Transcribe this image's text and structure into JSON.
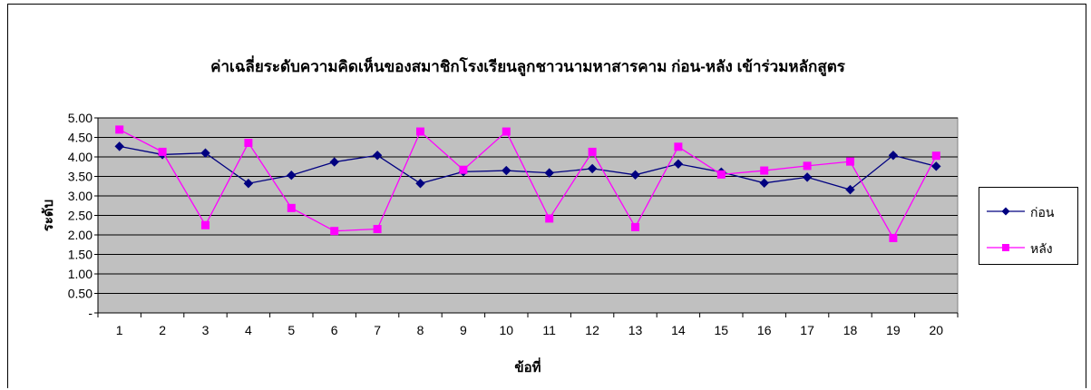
{
  "chart_data": {
    "type": "line",
    "title": "ค่าเฉลี่ยระดับความคิดเห็นของสมาชิกโรงเรียนลูกชาวนามหาสารคาม ก่อน-หลัง เข้าร่วมหลักสูตร",
    "xlabel": "ข้อที่",
    "ylabel": "ระดับ",
    "categories": [
      "1",
      "2",
      "3",
      "4",
      "5",
      "6",
      "7",
      "8",
      "9",
      "10",
      "11",
      "12",
      "13",
      "14",
      "15",
      "16",
      "17",
      "18",
      "19",
      "20"
    ],
    "y_ticks": [
      "-",
      "0.50",
      "1.00",
      "1.50",
      "2.00",
      "2.50",
      "3.00",
      "3.50",
      "4.00",
      "4.50",
      "5.00"
    ],
    "ylim": [
      0,
      5
    ],
    "grid": true,
    "plot_background": "#c0c0c0",
    "legend_position": "right",
    "series": [
      {
        "name": "ก่อน",
        "color": "#000080",
        "marker": "diamond",
        "values": [
          4.27,
          4.06,
          4.1,
          3.32,
          3.53,
          3.87,
          4.04,
          3.32,
          3.62,
          3.65,
          3.59,
          3.7,
          3.54,
          3.82,
          3.61,
          3.33,
          3.48,
          3.16,
          4.04,
          3.76
        ]
      },
      {
        "name": "หลัง",
        "color": "#ff00ff",
        "marker": "square",
        "values": [
          4.7,
          4.13,
          2.25,
          4.36,
          2.69,
          2.1,
          2.15,
          4.65,
          3.67,
          4.65,
          2.42,
          4.13,
          2.2,
          4.26,
          3.55,
          3.65,
          3.77,
          3.88,
          1.92,
          4.03
        ]
      }
    ]
  }
}
